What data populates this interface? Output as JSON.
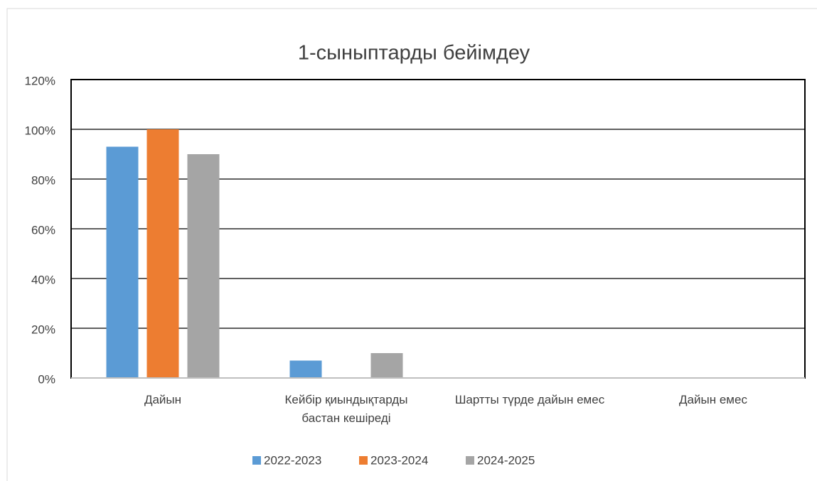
{
  "chart_data": {
    "type": "bar",
    "title": "1-сыныптарды бейімдеу",
    "categories": [
      "Дайын",
      "Кейбір қиындықтарды бастан кешіреді",
      "Шартты түрде дайын емес",
      "Дайын емес"
    ],
    "series": [
      {
        "name": "2022-2023",
        "color": "#5b9bd5",
        "values": [
          93,
          7,
          0,
          0
        ]
      },
      {
        "name": "2023-2024",
        "color": "#ed7d31",
        "values": [
          100,
          0,
          0,
          0
        ]
      },
      {
        "name": "2024-2025",
        "color": "#a5a5a5",
        "values": [
          90,
          10,
          0,
          0
        ]
      }
    ],
    "ylim": [
      0,
      120
    ],
    "yticks": [
      {
        "value": 0,
        "label": "0%"
      },
      {
        "value": 20,
        "label": "20%"
      },
      {
        "value": 40,
        "label": "40%"
      },
      {
        "value": 60,
        "label": "60%"
      },
      {
        "value": 80,
        "label": "80%"
      },
      {
        "value": 100,
        "label": "100%"
      },
      {
        "value": 120,
        "label": "120%"
      }
    ],
    "grid": true,
    "legend": "bottom"
  }
}
